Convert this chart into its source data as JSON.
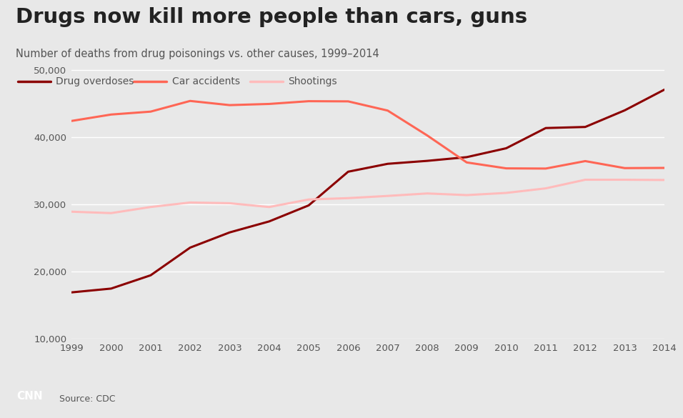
{
  "title": "Drugs now kill more people than cars, guns",
  "subtitle": "Number of deaths from drug poisonings vs. other causes, 1999–2014",
  "source": "Source: CDC",
  "years": [
    1999,
    2000,
    2001,
    2002,
    2003,
    2004,
    2005,
    2006,
    2007,
    2008,
    2009,
    2010,
    2011,
    2012,
    2013,
    2014
  ],
  "drug_overdoses": [
    16849,
    17415,
    19394,
    23518,
    25785,
    27424,
    29813,
    34833,
    36010,
    36450,
    37004,
    38329,
    41340,
    41502,
    43982,
    47055
  ],
  "car_accidents": [
    42401,
    43354,
    43788,
    45380,
    44757,
    44933,
    45343,
    45316,
    43945,
    40239,
    36216,
    35332,
    35303,
    36415,
    35369,
    35398
  ],
  "shootings": [
    28874,
    28663,
    29573,
    30242,
    30136,
    29569,
    30694,
    30896,
    31224,
    31593,
    31347,
    31672,
    32351,
    33636,
    33636,
    33599
  ],
  "drug_color": "#8B0000",
  "car_color": "#FF6655",
  "shooting_color": "#FFBBBB",
  "bg_color": "#E8E8E8",
  "grid_color": "#FFFFFF",
  "text_color": "#555555",
  "title_color": "#222222",
  "cnn_red": "#CC0000",
  "ylim": [
    10000,
    52000
  ],
  "yticks": [
    10000,
    20000,
    30000,
    40000,
    50000
  ],
  "line_width": 2.2
}
